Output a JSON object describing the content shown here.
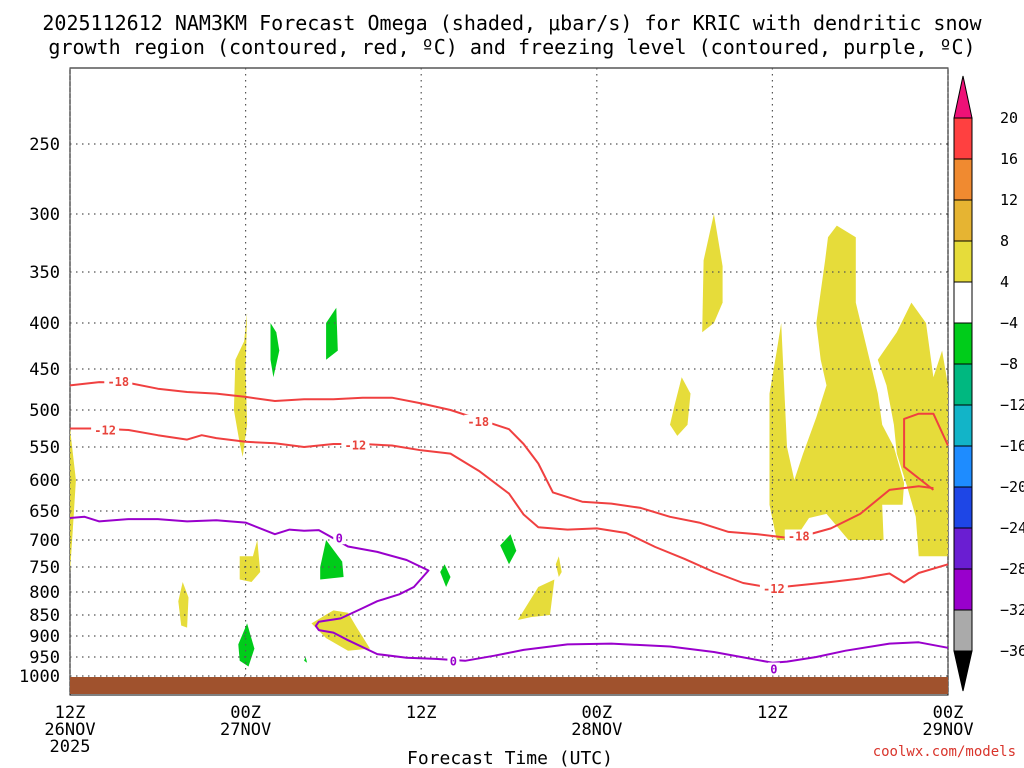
{
  "title_line1": "2025112612 NAM3KM Forecast Omega (shaded, μbar/s) for KRIC with dendritic snow",
  "title_line2": "growth region (contoured, red, ºC) and freezing level (contoured, purple, ºC)",
  "credit": "coolwx.com/models",
  "colors": {
    "dgz": "#f04040",
    "freezing": "#9900cc",
    "ground": "#a0522d",
    "omega_pos_4_8": "#e6dc3a",
    "omega_neg_4_8": "#00cc1a"
  },
  "chart_data": {
    "type": "heatmap",
    "title": "2025112612 NAM3KM Forecast Omega (shaded, μbar/s) for KRIC with dendritic snow growth region (contoured, red, ºC) and freezing level (contoured, purple, ºC)",
    "xlabel": "Forecast Time (UTC)",
    "ylabel": "",
    "x_ticks": [
      {
        "hour": 0,
        "l1": "12Z",
        "l2": "26NOV",
        "l3": "2025"
      },
      {
        "hour": 12,
        "l1": "00Z",
        "l2": "27NOV",
        "l3": ""
      },
      {
        "hour": 24,
        "l1": "12Z",
        "l2": "",
        "l3": ""
      },
      {
        "hour": 36,
        "l1": "00Z",
        "l2": "28NOV",
        "l3": ""
      },
      {
        "hour": 48,
        "l1": "12Z",
        "l2": "",
        "l3": ""
      },
      {
        "hour": 60,
        "l1": "00Z",
        "l2": "29NOV",
        "l3": ""
      }
    ],
    "xlim": [
      0,
      60
    ],
    "y_ticks": [
      "250",
      "300",
      "350",
      "400",
      "450",
      "500",
      "550",
      "600",
      "650",
      "700",
      "750",
      "800",
      "850",
      "900",
      "950",
      "1000"
    ],
    "ylim": [
      1030,
      200
    ],
    "colorbar": {
      "labels": [
        "20",
        "16",
        "12",
        "8",
        "4",
        "−4",
        "−8",
        "−12",
        "−16",
        "−20",
        "−24",
        "−28",
        "−32",
        "−36"
      ],
      "colors": [
        "#ff4040",
        "#f08a30",
        "#e6b432",
        "#e6dc3a",
        "#ffffff",
        "#00cc1a",
        "#00b880",
        "#12b4c8",
        "#1e8cff",
        "#1e46e6",
        "#6a1ed2",
        "#9900cc",
        "#aaaaaa"
      ],
      "top_arrow": "#ee1177",
      "bottom_arrow": "#000000"
    },
    "contours": [
      {
        "name": "-18",
        "color": "#f04040",
        "points": [
          [
            0,
            470
          ],
          [
            2,
            466
          ],
          [
            4,
            467
          ],
          [
            6,
            474
          ],
          [
            8,
            478
          ],
          [
            10,
            480
          ],
          [
            12,
            484
          ],
          [
            14,
            489
          ],
          [
            16,
            487
          ],
          [
            18,
            487
          ],
          [
            20,
            485
          ],
          [
            22,
            485
          ],
          [
            24,
            492
          ],
          [
            26,
            500
          ],
          [
            28,
            513
          ],
          [
            30,
            526
          ],
          [
            31,
            546
          ],
          [
            32,
            575
          ],
          [
            33,
            620
          ],
          [
            35,
            635
          ],
          [
            37,
            638
          ],
          [
            39,
            645
          ],
          [
            41,
            660
          ],
          [
            43,
            670
          ],
          [
            45,
            686
          ],
          [
            47,
            690
          ],
          [
            49,
            696
          ],
          [
            50,
            694
          ],
          [
            52,
            680
          ],
          [
            54,
            655
          ],
          [
            56,
            616
          ],
          [
            58,
            610
          ],
          [
            59,
            613
          ]
        ]
      },
      {
        "name": "-12",
        "color": "#f04040",
        "points": [
          [
            0,
            525
          ],
          [
            2,
            525
          ],
          [
            4,
            527
          ],
          [
            6,
            534
          ],
          [
            8,
            540
          ],
          [
            9,
            534
          ],
          [
            10,
            538
          ],
          [
            12,
            543
          ],
          [
            14,
            545
          ],
          [
            16,
            550
          ],
          [
            18,
            546
          ],
          [
            20,
            546
          ],
          [
            22,
            548
          ],
          [
            24,
            555
          ],
          [
            26,
            560
          ],
          [
            28,
            587
          ],
          [
            30,
            622
          ],
          [
            31,
            656
          ],
          [
            32,
            678
          ],
          [
            34,
            682
          ],
          [
            36,
            680
          ],
          [
            38,
            688
          ],
          [
            40,
            713
          ],
          [
            42,
            735
          ],
          [
            44,
            760
          ],
          [
            46,
            782
          ],
          [
            48,
            792
          ],
          [
            50,
            786
          ],
          [
            52,
            780
          ],
          [
            54,
            773
          ],
          [
            56,
            763
          ],
          [
            57,
            781
          ],
          [
            58,
            762
          ],
          [
            60,
            745
          ]
        ]
      },
      {
        "name": "-18 upper",
        "color": "#f04040",
        "points": [
          [
            60,
            548
          ],
          [
            59,
            505
          ],
          [
            58,
            505
          ],
          [
            57,
            512
          ],
          [
            57,
            580
          ],
          [
            59,
            616
          ]
        ]
      },
      {
        "name": "0 freezing",
        "color": "#9900cc",
        "points": [
          [
            0,
            662
          ],
          [
            1,
            660
          ],
          [
            2,
            668
          ],
          [
            4,
            664
          ],
          [
            6,
            664
          ],
          [
            8,
            668
          ],
          [
            10,
            666
          ],
          [
            12,
            670
          ],
          [
            14,
            690
          ],
          [
            15,
            682
          ],
          [
            16,
            684
          ],
          [
            17,
            683
          ],
          [
            18,
            697
          ],
          [
            19,
            712
          ],
          [
            21,
            722
          ],
          [
            23,
            737
          ],
          [
            24.5,
            757
          ],
          [
            23.5,
            790
          ],
          [
            22.5,
            805
          ],
          [
            21,
            820
          ],
          [
            20,
            835
          ],
          [
            18.5,
            858
          ],
          [
            17,
            866
          ],
          [
            16.8,
            876
          ],
          [
            17,
            886
          ],
          [
            18,
            892
          ],
          [
            19,
            910
          ],
          [
            21,
            943
          ],
          [
            23,
            952
          ],
          [
            25,
            955
          ],
          [
            27,
            960
          ],
          [
            29,
            947
          ],
          [
            31,
            933
          ],
          [
            34,
            920
          ],
          [
            37,
            918
          ],
          [
            41,
            925
          ],
          [
            44,
            938
          ],
          [
            48,
            965
          ],
          [
            49,
            962
          ],
          [
            51,
            950
          ],
          [
            53,
            935
          ],
          [
            56,
            918
          ],
          [
            58,
            915
          ],
          [
            60,
            928
          ]
        ]
      }
    ],
    "contour_labels": [
      {
        "text": "-18",
        "hour": 3.3,
        "p": 466,
        "color": "#f04040"
      },
      {
        "text": "-12",
        "hour": 2.4,
        "p": 528,
        "color": "#f04040"
      },
      {
        "text": "-18",
        "hour": 27.9,
        "p": 516,
        "color": "#f04040"
      },
      {
        "text": "-12",
        "hour": 19.5,
        "p": 548,
        "color": "#f04040"
      },
      {
        "text": "-18",
        "hour": 49.8,
        "p": 694,
        "color": "#f04040"
      },
      {
        "text": "-12",
        "hour": 48.1,
        "p": 794,
        "color": "#f04040"
      },
      {
        "text": "0",
        "hour": 18.4,
        "p": 697,
        "color": "#9900cc"
      },
      {
        "text": "0",
        "hour": 26.2,
        "p": 962,
        "color": "#9900cc"
      },
      {
        "text": "0",
        "hour": 48.1,
        "p": 983,
        "color": "#9900cc"
      }
    ],
    "omega_regions": [
      {
        "value": "4 to 8",
        "color": "#e6dc3a",
        "points": [
          [
            0,
            525
          ],
          [
            0.4,
            600
          ],
          [
            0.2,
            680
          ],
          [
            0,
            760
          ]
        ]
      },
      {
        "value": "4 to 8",
        "color": "#e6dc3a",
        "points": [
          [
            11.9,
            420
          ],
          [
            12.1,
            390
          ],
          [
            12,
            450
          ],
          [
            12.1,
            520
          ],
          [
            11.8,
            565
          ],
          [
            11.6,
            545
          ],
          [
            11.2,
            500
          ],
          [
            11.3,
            440
          ]
        ]
      },
      {
        "value": "4 to 8",
        "color": "#e6dc3a",
        "points": [
          [
            11.6,
            730
          ],
          [
            12.5,
            730
          ],
          [
            12.8,
            700
          ],
          [
            13,
            760
          ],
          [
            12.4,
            780
          ],
          [
            11.6,
            775
          ]
        ]
      },
      {
        "value": "4 to 8",
        "color": "#e6dc3a",
        "points": [
          [
            7.7,
            780
          ],
          [
            8.1,
            812
          ],
          [
            8,
            880
          ],
          [
            7.6,
            875
          ],
          [
            7.4,
            820
          ]
        ]
      },
      {
        "value": "4 to 8",
        "color": "#e6dc3a",
        "points": [
          [
            16.5,
            870
          ],
          [
            18,
            840
          ],
          [
            19,
            845
          ],
          [
            19.6,
            880
          ],
          [
            20.5,
            930
          ],
          [
            19,
            935
          ],
          [
            17.5,
            905
          ]
        ]
      },
      {
        "value": "4 to 8",
        "color": "#e6dc3a",
        "points": [
          [
            41.3,
            495
          ],
          [
            41.8,
            460
          ],
          [
            42.4,
            480
          ],
          [
            42.2,
            520
          ],
          [
            41.5,
            535
          ],
          [
            41,
            520
          ]
        ]
      },
      {
        "value": "4 to 8",
        "color": "#e6dc3a",
        "points": [
          [
            43.3,
            340
          ],
          [
            44,
            300
          ],
          [
            44.6,
            345
          ],
          [
            44.6,
            380
          ],
          [
            44,
            400
          ],
          [
            43.2,
            410
          ]
        ]
      },
      {
        "value": "4 to 8",
        "color": "#e6dc3a",
        "points": [
          [
            47.8,
            480
          ],
          [
            48.3,
            430
          ],
          [
            48.6,
            400
          ],
          [
            49,
            550
          ],
          [
            49.5,
            600
          ],
          [
            50.1,
            560
          ],
          [
            51,
            510
          ],
          [
            51.7,
            470
          ],
          [
            51.3,
            440
          ],
          [
            51,
            400
          ],
          [
            51.6,
            340
          ],
          [
            51.8,
            320
          ],
          [
            52.4,
            310
          ],
          [
            53.7,
            320
          ],
          [
            53.7,
            380
          ],
          [
            55.2,
            480
          ],
          [
            55.5,
            520
          ],
          [
            56.3,
            550
          ],
          [
            57,
            605
          ],
          [
            56.9,
            640
          ],
          [
            55.5,
            640
          ],
          [
            55.6,
            700
          ],
          [
            53.2,
            700
          ],
          [
            51.7,
            655
          ],
          [
            50.5,
            662
          ],
          [
            49.5,
            700
          ],
          [
            48.3,
            700
          ],
          [
            47.8,
            640
          ]
        ]
      },
      {
        "value": "4 to 8",
        "color": "#e6dc3a",
        "points": [
          [
            55.2,
            440
          ],
          [
            56.5,
            410
          ],
          [
            57.5,
            380
          ],
          [
            58.5,
            400
          ],
          [
            59,
            460
          ],
          [
            59.6,
            430
          ],
          [
            60,
            470
          ],
          [
            60,
            730
          ],
          [
            58,
            730
          ],
          [
            57.8,
            660
          ],
          [
            57.2,
            610
          ],
          [
            56.5,
            560
          ],
          [
            56.3,
            520
          ],
          [
            55.8,
            470
          ]
        ]
      },
      {
        "value": "4 to 8",
        "color": "#e6dc3a",
        "points": [
          [
            32,
            790
          ],
          [
            33.1,
            775
          ],
          [
            32.8,
            850
          ],
          [
            31.5,
            855
          ],
          [
            30.6,
            862
          ]
        ]
      },
      {
        "value": "4 to 8",
        "color": "#e6dc3a",
        "points": [
          [
            33.2,
            745
          ],
          [
            33.4,
            730
          ],
          [
            33.6,
            760
          ],
          [
            33.4,
            770
          ]
        ]
      },
      {
        "value": "-4 to -8",
        "color": "#00cc1a",
        "points": [
          [
            13.7,
            400
          ],
          [
            14.1,
            410
          ],
          [
            14.3,
            430
          ],
          [
            13.9,
            460
          ],
          [
            13.7,
            440
          ]
        ]
      },
      {
        "value": "-4 to -8",
        "color": "#00cc1a",
        "points": [
          [
            17.5,
            400
          ],
          [
            18.2,
            385
          ],
          [
            18.3,
            430
          ],
          [
            17.5,
            440
          ]
        ]
      },
      {
        "value": "-4 to -8",
        "color": "#00cc1a",
        "points": [
          [
            17.1,
            750
          ],
          [
            17.5,
            700
          ],
          [
            18.6,
            740
          ],
          [
            18.7,
            770
          ],
          [
            17.1,
            775
          ]
        ]
      },
      {
        "value": "-4 to -8",
        "color": "#00cc1a",
        "points": [
          [
            25.3,
            760
          ],
          [
            25.6,
            745
          ],
          [
            26,
            770
          ],
          [
            25.7,
            790
          ]
        ]
      },
      {
        "value": "-4 to -8",
        "color": "#00cc1a",
        "points": [
          [
            29.4,
            710
          ],
          [
            30.1,
            690
          ],
          [
            30.5,
            720
          ],
          [
            30,
            745
          ]
        ]
      },
      {
        "value": "-4 to -8",
        "color": "#00cc1a",
        "points": [
          [
            11.5,
            920
          ],
          [
            12.1,
            870
          ],
          [
            12.6,
            930
          ],
          [
            12.2,
            975
          ],
          [
            11.6,
            960
          ]
        ]
      },
      {
        "value": "-4 to -8",
        "color": "#00cc1a",
        "points": [
          [
            16,
            960
          ],
          [
            16.1,
            950
          ],
          [
            16.2,
            965
          ]
        ]
      }
    ]
  }
}
